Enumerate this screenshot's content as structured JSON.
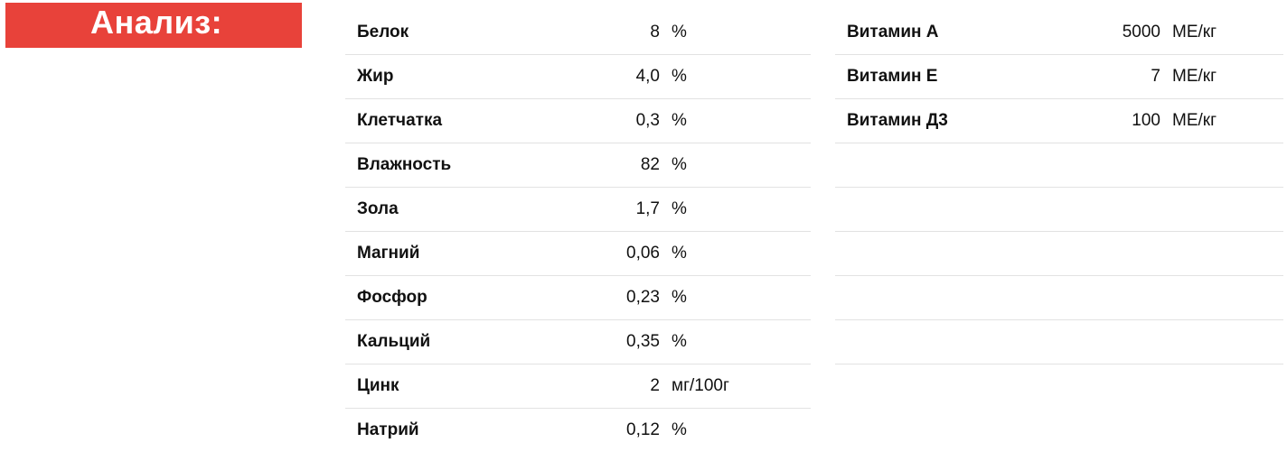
{
  "heading": "Анализ:",
  "left_table": [
    {
      "name": "Белок",
      "value": "8",
      "unit": "%"
    },
    {
      "name": "Жир",
      "value": "4,0",
      "unit": "%"
    },
    {
      "name": "Клетчатка",
      "value": "0,3",
      "unit": "%"
    },
    {
      "name": "Влажность",
      "value": "82",
      "unit": "%"
    },
    {
      "name": "Зола",
      "value": "1,7",
      "unit": "%"
    },
    {
      "name": "Магний",
      "value": "0,06",
      "unit": "%"
    },
    {
      "name": "Фосфор",
      "value": "0,23",
      "unit": "%"
    },
    {
      "name": "Кальций",
      "value": "0,35",
      "unit": "%"
    },
    {
      "name": "Цинк",
      "value": "2",
      "unit": "мг/100г"
    },
    {
      "name": "Натрий",
      "value": "0,12",
      "unit": "%"
    }
  ],
  "right_table": [
    {
      "name": "Витамин А",
      "value": "5000",
      "unit": "МЕ/кг"
    },
    {
      "name": "Витамин Е",
      "value": "7",
      "unit": "МЕ/кг"
    },
    {
      "name": "Витамин Д3",
      "value": "100",
      "unit": "МЕ/кг"
    },
    {
      "name": "",
      "value": "",
      "unit": ""
    },
    {
      "name": "",
      "value": "",
      "unit": ""
    },
    {
      "name": "",
      "value": "",
      "unit": ""
    },
    {
      "name": "",
      "value": "",
      "unit": ""
    },
    {
      "name": "",
      "value": "",
      "unit": ""
    },
    {
      "name": "",
      "value": "",
      "unit": ""
    }
  ],
  "colors": {
    "heading_bg": "#e8423a",
    "heading_text": "#ffffff",
    "row_divider": "#e2e2e2"
  }
}
